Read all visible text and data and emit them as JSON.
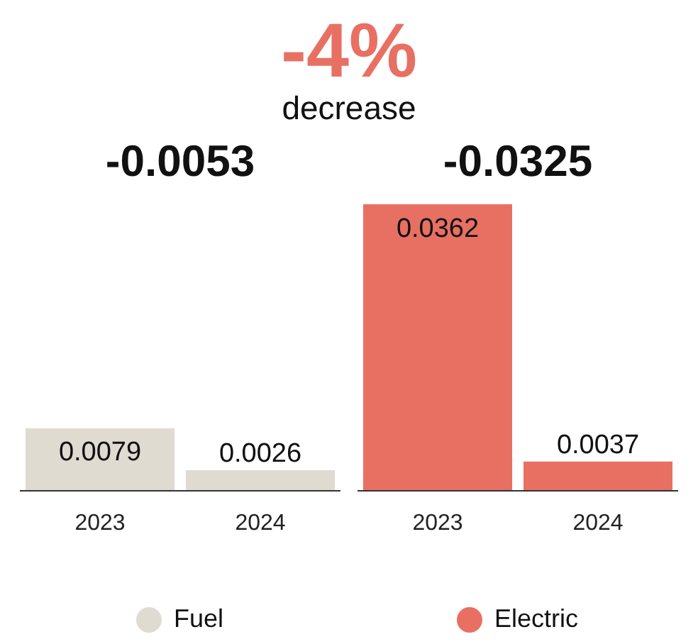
{
  "chart_data": [
    {
      "type": "bar",
      "annotations": [
        "-4%",
        "decrease"
      ],
      "title": "-0.0053",
      "categories": [
        "2023",
        "2024"
      ],
      "series": [
        {
          "name": "Fuel",
          "color": "#e0dbd0",
          "values": [
            0.0079,
            0.0026
          ]
        }
      ],
      "data_labels": true,
      "legend": "bottom",
      "grid": false
    },
    {
      "type": "bar",
      "title": "-0.0325",
      "categories": [
        "2023",
        "2024"
      ],
      "series": [
        {
          "name": "Electric",
          "color": "#e87063",
          "values": [
            0.0362,
            0.0037
          ]
        }
      ],
      "data_labels": true,
      "legend": "bottom",
      "grid": false
    }
  ]
}
